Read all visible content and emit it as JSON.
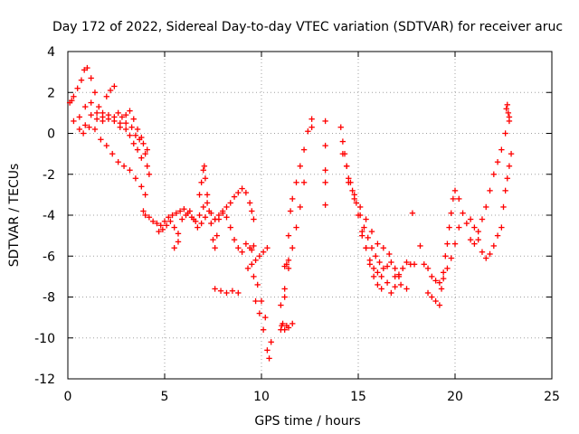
{
  "chart_data": {
    "type": "scatter",
    "marker": "+",
    "title": "Day 172 of 2022, Sidereal Day-to-day VTEC variation (SDTVAR) for receiver aruc",
    "xlabel": "GPS time / hours",
    "ylabel": "SDTVAR / TECUs",
    "xlim": [
      0,
      25
    ],
    "ylim": [
      -12,
      4
    ],
    "xticks": [
      0,
      5,
      10,
      15,
      20,
      25
    ],
    "yticks": [
      -12,
      -10,
      -8,
      -6,
      -4,
      -2,
      0,
      2,
      4
    ],
    "grid": true,
    "series": [
      {
        "name": "SDTVAR",
        "color": "#ff0000",
        "x": [
          0.1,
          0.2,
          0.3,
          0.5,
          0.7,
          0.85,
          1.0,
          1.2,
          1.4,
          1.6,
          1.8,
          2.0,
          2.2,
          2.4,
          2.6,
          2.8,
          3.0,
          3.2,
          3.4,
          3.6,
          3.8,
          4.0,
          0.3,
          0.6,
          0.9,
          1.2,
          1.5,
          1.8,
          2.1,
          2.4,
          2.7,
          3.0,
          3.3,
          3.5,
          3.7,
          3.9,
          4.1,
          0.6,
          0.9,
          1.2,
          1.5,
          1.8,
          2.1,
          2.4,
          2.7,
          3.0,
          3.2,
          3.4,
          3.6,
          3.8,
          0.8,
          1.1,
          1.4,
          1.7,
          2.0,
          2.3,
          2.6,
          2.9,
          3.2,
          3.5,
          3.8,
          4.0,
          4.1,
          4.2,
          3.9,
          4.0,
          4.2,
          4.4,
          4.6,
          4.8,
          5.0,
          5.2,
          5.4,
          5.6,
          5.8,
          6.0,
          6.2,
          6.4,
          6.6,
          6.8,
          7.0,
          7.2,
          7.4,
          7.6,
          4.7,
          4.9,
          5.1,
          5.3,
          5.5,
          5.7,
          5.9,
          6.1,
          6.3,
          6.5,
          6.7,
          6.9,
          7.1,
          5.5,
          5.7,
          6.8,
          6.9,
          7.0,
          7.05,
          7.1,
          7.2,
          7.3,
          7.4,
          7.5,
          7.6,
          7.7,
          7.8,
          8.0,
          8.2,
          8.4,
          8.6,
          8.8,
          9.0,
          9.2,
          9.4,
          9.5,
          9.6,
          7.6,
          7.8,
          8.0,
          8.2,
          8.4,
          8.6,
          8.8,
          9.0,
          9.2,
          9.4,
          9.5,
          9.6,
          7.6,
          7.9,
          8.2,
          8.5,
          8.8,
          9.3,
          9.5,
          9.7,
          9.9,
          10.1,
          10.3,
          9.6,
          9.8,
          10.0,
          10.2,
          9.7,
          9.9,
          10.1,
          10.3,
          10.4,
          10.5,
          11.0,
          11.05,
          11.1,
          11.2,
          11.3,
          11.4,
          11.5,
          11.6,
          11.8,
          12.0,
          12.2,
          12.4,
          12.6,
          11.0,
          11.2,
          11.4,
          11.6,
          11.8,
          12.0,
          12.2,
          11.2,
          11.4,
          11.2,
          11.3,
          11.4,
          11.6,
          12.6,
          13.3,
          13.3,
          13.3,
          13.3,
          13.3,
          14.1,
          14.2,
          14.3,
          14.4,
          14.5,
          14.7,
          14.9,
          15.1,
          15.3,
          15.5,
          15.7,
          15.9,
          16.1,
          16.3,
          16.5,
          16.7,
          16.9,
          17.1,
          14.2,
          14.4,
          14.6,
          14.8,
          15.0,
          15.2,
          15.4,
          15.6,
          15.8,
          16.0,
          16.2,
          15.2,
          15.4,
          15.6,
          15.8,
          16.0,
          16.2,
          14.5,
          14.8,
          15.1,
          15.4,
          15.7,
          16.0,
          16.3,
          16.6,
          16.9,
          17.2,
          17.5,
          16.5,
          16.7,
          16.9,
          17.1,
          17.3,
          17.5,
          17.7,
          17.8,
          17.9,
          18.2,
          18.4,
          18.6,
          18.8,
          19.0,
          19.2,
          19.4,
          19.6,
          19.8,
          20.0,
          20.2,
          18.6,
          18.8,
          19.0,
          19.2,
          19.3,
          19.4,
          19.5,
          19.6,
          19.7,
          19.8,
          19.9,
          20.0,
          20.2,
          20.4,
          20.6,
          20.8,
          21.0,
          21.2,
          21.4,
          21.6,
          21.8,
          22.0,
          22.2,
          22.4,
          22.6,
          22.8,
          20.8,
          21.0,
          21.2,
          21.4,
          21.6,
          21.8,
          22.0,
          22.2,
          22.4,
          22.5,
          22.6,
          22.7,
          22.8,
          22.9,
          22.65,
          22.7,
          22.75,
          22.8
        ],
        "y": [
          1.5,
          1.6,
          1.8,
          2.2,
          2.6,
          3.1,
          3.2,
          2.7,
          2.0,
          1.3,
          1.0,
          1.8,
          2.1,
          2.3,
          1.0,
          0.8,
          0.9,
          1.1,
          0.7,
          0.2,
          -0.2,
          -1.0,
          0.6,
          0.8,
          1.3,
          1.5,
          1.0,
          0.6,
          0.7,
          0.8,
          0.3,
          0.2,
          0.3,
          -0.1,
          -0.3,
          -0.5,
          -0.8,
          0.2,
          0.4,
          0.9,
          0.7,
          0.8,
          0.9,
          0.6,
          0.5,
          0.5,
          -0.1,
          -0.5,
          -0.8,
          -1.2,
          0.0,
          0.3,
          0.2,
          -0.3,
          -0.6,
          -1.0,
          -1.4,
          -1.6,
          -1.8,
          -2.2,
          -2.6,
          -3.0,
          -1.6,
          -2.0,
          -3.8,
          -4.0,
          -4.1,
          -4.3,
          -4.4,
          -4.5,
          -4.3,
          -4.1,
          -4.0,
          -3.9,
          -3.8,
          -3.7,
          -3.9,
          -4.1,
          -4.3,
          -4.0,
          -3.6,
          -3.4,
          -3.9,
          -4.2,
          -4.8,
          -4.7,
          -4.5,
          -4.3,
          -4.6,
          -4.9,
          -4.2,
          -4.0,
          -3.8,
          -4.2,
          -4.6,
          -4.4,
          -4.1,
          -5.6,
          -5.3,
          -3.0,
          -2.4,
          -1.8,
          -1.6,
          -2.2,
          -3.0,
          -3.8,
          -4.4,
          -5.2,
          -5.6,
          -5.0,
          -4.2,
          -3.9,
          -4.1,
          -4.6,
          -5.2,
          -5.6,
          -5.8,
          -5.4,
          -5.6,
          -5.7,
          -5.5,
          -4.2,
          -4.0,
          -3.8,
          -3.6,
          -3.4,
          -3.1,
          -2.9,
          -2.7,
          -2.9,
          -3.4,
          -3.8,
          -4.2,
          -7.6,
          -7.7,
          -7.8,
          -7.7,
          -7.8,
          -6.6,
          -6.4,
          -6.2,
          -6.0,
          -5.8,
          -5.6,
          -7.0,
          -7.4,
          -8.2,
          -9.0,
          -8.2,
          -8.8,
          -9.6,
          -10.6,
          -11.0,
          -10.2,
          -9.6,
          -9.4,
          -9.3,
          -8.0,
          -6.4,
          -5.0,
          -3.8,
          -3.2,
          -2.4,
          -1.6,
          -0.8,
          0.1,
          0.7,
          -8.4,
          -7.6,
          -6.6,
          -5.6,
          -4.6,
          -3.6,
          -2.4,
          -6.5,
          -6.2,
          -9.6,
          -9.4,
          -9.5,
          -9.3,
          0.3,
          0.6,
          -0.6,
          -1.8,
          -2.4,
          -3.5,
          0.3,
          -0.4,
          -1.0,
          -1.6,
          -2.2,
          -2.8,
          -3.4,
          -4.0,
          -4.6,
          -5.1,
          -5.6,
          -6.0,
          -6.3,
          -6.6,
          -6.5,
          -6.3,
          -6.6,
          -6.9,
          -1.0,
          -1.6,
          -2.4,
          -3.2,
          -4.0,
          -4.8,
          -5.6,
          -6.4,
          -7.0,
          -7.4,
          -7.6,
          -5.0,
          -5.6,
          -6.2,
          -6.6,
          -6.8,
          -7.0,
          -2.4,
          -3.0,
          -3.6,
          -4.2,
          -4.8,
          -5.4,
          -5.6,
          -5.9,
          -7.0,
          -7.4,
          -7.6,
          -7.3,
          -7.8,
          -7.5,
          -7.0,
          -6.6,
          -6.3,
          -6.4,
          -3.9,
          -6.4,
          -5.5,
          -6.4,
          -6.6,
          -7.0,
          -7.2,
          -7.3,
          -7.1,
          -6.6,
          -6.1,
          -5.4,
          -4.6,
          -7.8,
          -8.0,
          -8.2,
          -8.4,
          -7.6,
          -6.8,
          -6.0,
          -5.4,
          -4.6,
          -3.9,
          -3.2,
          -2.8,
          -3.2,
          -3.9,
          -4.4,
          -5.2,
          -5.4,
          -4.8,
          -4.2,
          -3.6,
          -2.8,
          -2.0,
          -1.4,
          -0.8,
          0.0,
          0.8,
          -4.2,
          -4.6,
          -5.2,
          -5.8,
          -6.1,
          -5.9,
          -5.5,
          -5.0,
          -4.6,
          -3.6,
          -2.8,
          -2.2,
          -1.6,
          -1.0,
          1.2,
          1.4,
          1.0,
          0.6
        ]
      }
    ]
  }
}
